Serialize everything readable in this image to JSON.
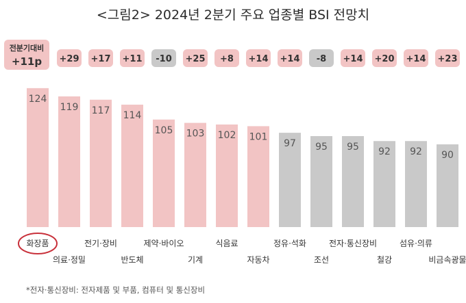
{
  "title": "<그림2> 2024년 2분기 주요 업종별 BSI 전망치",
  "footnote": "*전자·통신장비: 전자제품 및 부품, 컴퓨터 및 통신장비",
  "overall_badge": {
    "label": "전분기대비",
    "value": "+11p"
  },
  "colors": {
    "highlight": "#f2c4c4",
    "neutral": "#c9c9c9",
    "circle": "#c8303a"
  },
  "chart_data": {
    "type": "bar",
    "title": "<그림2> 2024년 2분기 주요 업종별 BSI 전망치",
    "categories": [
      "화장품",
      "의료·정밀",
      "전기·장비",
      "반도체",
      "제약·바이오",
      "기계",
      "식음료",
      "자동차",
      "정유·석화",
      "조선",
      "전자·통신장비",
      "철강",
      "섬유·의류",
      "비금속광물"
    ],
    "values": [
      124,
      119,
      117,
      114,
      105,
      103,
      102,
      101,
      97,
      95,
      95,
      92,
      92,
      90
    ],
    "value_labels": [
      "124",
      "119",
      "117",
      "114",
      "105",
      "103",
      "102",
      "101",
      "97",
      "95",
      "95",
      "92",
      "92",
      "90"
    ],
    "changes": [
      "",
      "+29",
      "+17",
      "+11",
      "-10",
      "+25",
      "+8",
      "+14",
      "+14",
      "-8",
      "+14",
      "+20",
      "+14",
      "+23"
    ],
    "highlighted": [
      true,
      true,
      true,
      true,
      true,
      true,
      true,
      true,
      false,
      false,
      false,
      false,
      false,
      false
    ],
    "ylim": [
      40,
      126
    ],
    "xlabel": "",
    "ylabel": "",
    "grid": false
  }
}
